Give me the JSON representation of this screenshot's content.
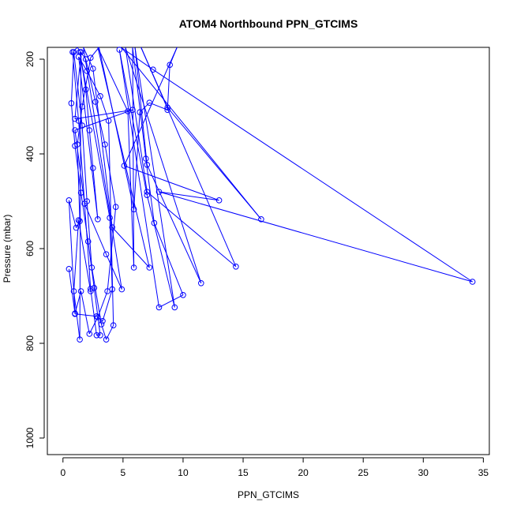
{
  "chart_data": {
    "type": "scatter",
    "title": "ATOM4 Northbound PPN_GTCIMS",
    "xlabel": "PPN_GTCIMS",
    "ylabel": "Pressure (mbar)",
    "xlim": [
      -1.3,
      35.5
    ],
    "ylim": [
      1035,
      175
    ],
    "y_reversed": true,
    "xticks": [
      "0",
      "5",
      "10",
      "15",
      "20",
      "25",
      "30",
      "35"
    ],
    "yticks": [
      "200",
      "400",
      "600",
      "800",
      "1000"
    ],
    "grid": false,
    "legend": "none",
    "marker": "open-circle",
    "colors": {
      "series": "#0000ff",
      "axis": "#000000",
      "background": "#ffffff"
    },
    "series": [
      {
        "points": [
          [
            0.5,
            643
          ],
          [
            1.0,
            737
          ],
          [
            1.5,
            690
          ],
          [
            2.2,
            780
          ],
          [
            2.9,
            745
          ],
          [
            3.7,
            690
          ],
          [
            4.4,
            512
          ],
          [
            3.5,
            380
          ],
          [
            2.7,
            290
          ],
          [
            1.9,
            200
          ],
          [
            1.2,
            175
          ],
          [
            0.8,
            185
          ],
          [
            1.3,
            330
          ],
          [
            1.8,
            505
          ],
          [
            2.3,
            685
          ],
          [
            2.8,
            783
          ],
          [
            3.1,
            783
          ],
          [
            2.6,
            683
          ],
          [
            2.1,
            585
          ],
          [
            1.5,
            482
          ],
          [
            1.0,
            383
          ],
          [
            0.7,
            293
          ],
          [
            0.9,
            185
          ],
          [
            1.6,
            340
          ],
          [
            2.0,
            500
          ],
          [
            2.4,
            640
          ],
          [
            3.2,
            760
          ],
          [
            3.6,
            792
          ],
          [
            4.2,
            762
          ],
          [
            3.8,
            330
          ],
          [
            3.1,
            278
          ],
          [
            2.0,
            225
          ],
          [
            1.3,
            195
          ],
          [
            2.9,
            538
          ],
          [
            2.5,
            430
          ],
          [
            2.2,
            350
          ],
          [
            1.9,
            264
          ],
          [
            1.4,
            185
          ],
          [
            3.9,
            535
          ],
          [
            4.1,
            686
          ],
          [
            3.3,
            753
          ],
          [
            2.8,
            743
          ],
          [
            1.0,
            738
          ],
          [
            0.5,
            498
          ],
          [
            1.1,
            556
          ],
          [
            1.4,
            542
          ],
          [
            1.2,
            380
          ],
          [
            1.6,
            300
          ],
          [
            2.3,
            197
          ],
          [
            3.0,
            175
          ],
          [
            5.9,
            517
          ],
          [
            6.4,
            312
          ],
          [
            7.2,
            292
          ],
          [
            8.7,
            307
          ],
          [
            8.9,
            212
          ],
          [
            9.5,
            175
          ],
          [
            5.1,
            425
          ],
          [
            13.0,
            498
          ],
          [
            8.0,
            480
          ],
          [
            34.1,
            670
          ],
          [
            7.5,
            222
          ],
          [
            4.9,
            176
          ],
          [
            16.5,
            538
          ],
          [
            8.7,
            302
          ],
          [
            6.5,
            175
          ],
          [
            14.4,
            638
          ],
          [
            7.0,
            480
          ],
          [
            5.2,
            175
          ],
          [
            11.5,
            673
          ],
          [
            7.0,
            423
          ],
          [
            6.0,
            176
          ],
          [
            9.3,
            724
          ],
          [
            7.0,
            487
          ],
          [
            4.7,
            180
          ],
          [
            8.0,
            724
          ],
          [
            10.0,
            698
          ],
          [
            7.6,
            546
          ],
          [
            6.9,
            410
          ],
          [
            5.8,
            175
          ],
          [
            5.9,
            640
          ],
          [
            5.4,
            310
          ],
          [
            2.9,
            175
          ],
          [
            7.2,
            640
          ],
          [
            4.1,
            555
          ],
          [
            2.5,
            220
          ],
          [
            1.7,
            175
          ],
          [
            4.9,
            686
          ],
          [
            3.6,
            612
          ],
          [
            1.8,
            505
          ],
          [
            1.0,
            350
          ],
          [
            5.8,
            307
          ],
          [
            1.0,
            326
          ],
          [
            1.5,
            185
          ],
          [
            1.4,
            792
          ],
          [
            0.9,
            690
          ],
          [
            1.3,
            540
          ],
          [
            2.3,
            690
          ]
        ]
      }
    ]
  }
}
